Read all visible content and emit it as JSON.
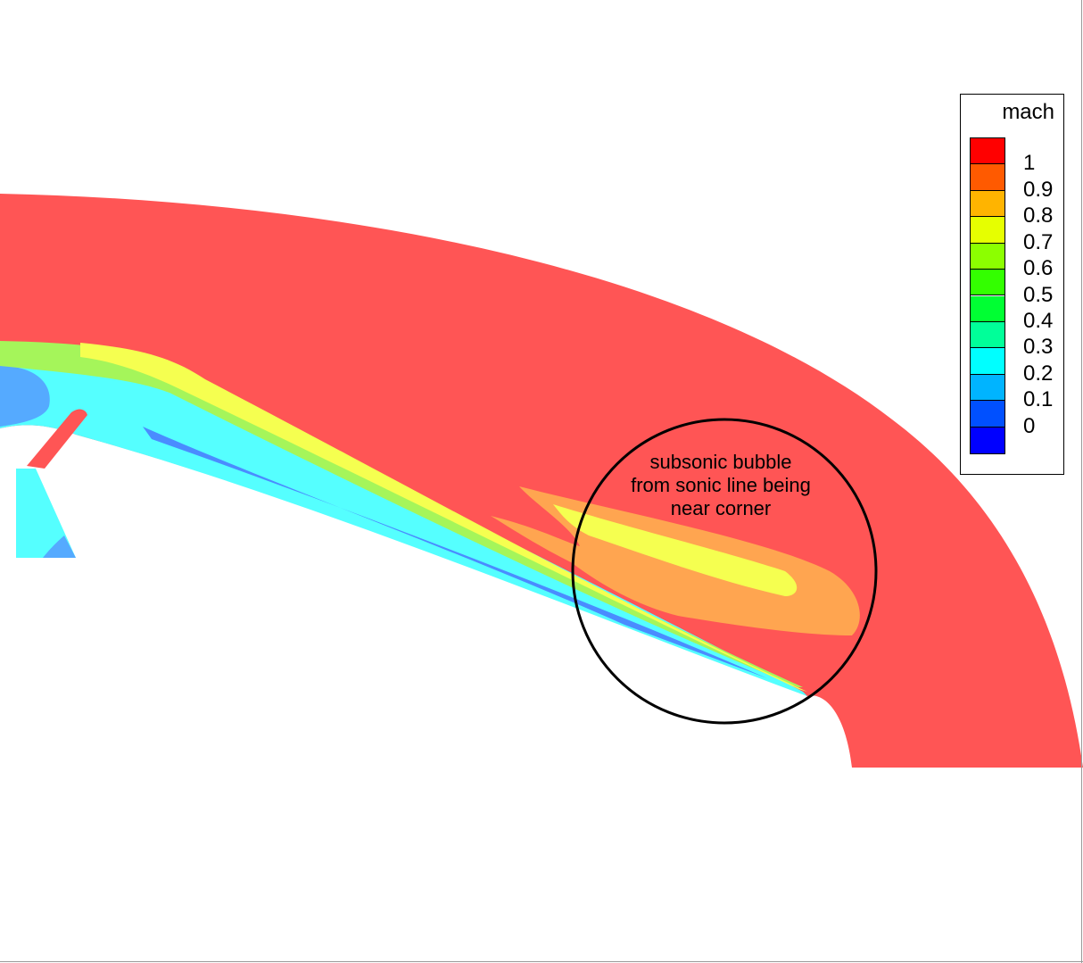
{
  "legend": {
    "title": "mach",
    "levels": [
      {
        "label": "1",
        "color": "#ff0000"
      },
      {
        "label": "0.9",
        "color": "#ff5a00"
      },
      {
        "label": "0.8",
        "color": "#ffb400"
      },
      {
        "label": "0.7",
        "color": "#e6ff00"
      },
      {
        "label": "0.6",
        "color": "#8cff00"
      },
      {
        "label": "0.5",
        "color": "#33ff00"
      },
      {
        "label": "0.4",
        "color": "#00ff33"
      },
      {
        "label": "0.3",
        "color": "#00ff99"
      },
      {
        "label": "0.2",
        "color": "#00ffff"
      },
      {
        "label": "0.1",
        "color": "#00b4ff"
      },
      {
        "label": "0",
        "color": "#0050ff"
      }
    ],
    "bottom_color": "#0000ff"
  },
  "annotation": {
    "lines": [
      "subsonic bubble",
      "from sonic line being",
      "near corner"
    ]
  },
  "colors": {
    "supersonic": "#ff5555",
    "orange_zone": "#ffa550",
    "yellow_zone": "#f5ff50",
    "green_zone": "#a5f55a",
    "cyan_zone": "#55ffff",
    "light_blue_zone": "#55aaff",
    "blue_zone": "#4a8cff"
  }
}
